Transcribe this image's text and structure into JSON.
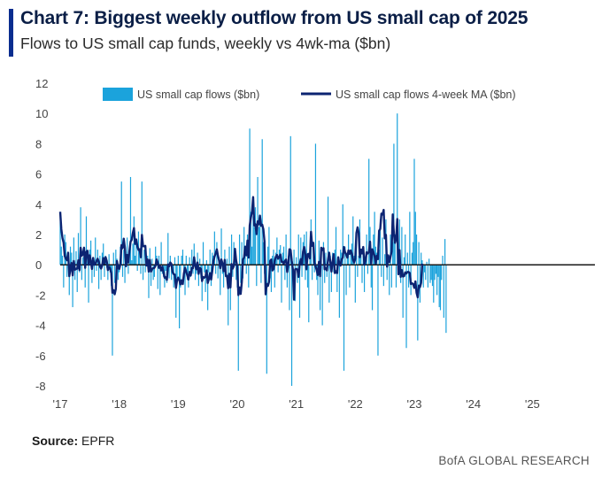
{
  "title": "Chart 7: Biggest weekly outflow from US small cap of 2025",
  "subtitle": "Flows to US small cap funds, weekly vs 4wk-ma ($bn)",
  "source_label": "Source:",
  "source_value": "EPFR",
  "footer": "BofA GLOBAL RESEARCH",
  "colors": {
    "bars": "#1ba3dc",
    "ma_line": "#0c2472",
    "zero_line": "#1a1a1a",
    "accent": "#0a2d8f"
  },
  "chart_data": {
    "type": "bar",
    "title": "Chart 7: Biggest weekly outflow from US small cap of 2025",
    "subtitle": "Flows to US small cap funds, weekly vs 4wk-ma ($bn)",
    "xlabel": "",
    "ylabel": "",
    "ylim": [
      -8,
      12
    ],
    "y_ticks": [
      12,
      10,
      8,
      6,
      4,
      2,
      0,
      -2,
      -4,
      -6,
      -8
    ],
    "x_tick_labels": [
      "'17",
      "'18",
      "'19",
      "'20",
      "'21",
      "'22",
      "'23",
      "'24",
      "'25"
    ],
    "x_range": [
      2017.0,
      2025.85
    ],
    "legend": [
      "US small cap flows ($bn)",
      "US small cap flows 4-week MA ($bn)"
    ],
    "legend_position": "top",
    "grid": false,
    "series": [
      {
        "name": "US small cap flows ($bn)",
        "kind": "bar",
        "period": "weekly",
        "start": 2017.0,
        "step": 0.01923,
        "values": [
          3.5,
          1.2,
          0.6,
          -1.5,
          2.0,
          1.5,
          -0.8,
          0.5,
          -2.0,
          1.2,
          0.8,
          -2.8,
          1.8,
          -1.0,
          0.9,
          -1.8,
          2.1,
          -0.5,
          3.8,
          -1.0,
          0.5,
          1.2,
          -1.5,
          3.2,
          0.8,
          -2.5,
          1.0,
          1.6,
          -1.2,
          0.4,
          -0.8,
          1.8,
          -0.4,
          1.0,
          -1.6,
          0.6,
          -1.0,
          0.8,
          1.4,
          -0.8,
          0.6,
          -0.2,
          -1.0,
          0.7,
          -0.5,
          -1.4,
          -6.0,
          0.8,
          -1.2,
          1.0,
          0.4,
          -1.0,
          -0.5,
          1.2,
          5.5,
          -0.8,
          1.0,
          -1.2,
          0.6,
          1.8,
          -0.6,
          0.9,
          5.8,
          0.3,
          1.4,
          3.2,
          0.6,
          1.5,
          -0.4,
          2.2,
          0.8,
          -0.6,
          5.5,
          -1.0,
          1.0,
          -0.5,
          0.3,
          0.6,
          -2.2,
          1.1,
          -1.4,
          0.4,
          -1.0,
          -0.8,
          1.2,
          0.6,
          -1.6,
          0.6,
          -2.0,
          1.5,
          -0.6,
          -0.8,
          -1.5,
          -0.4,
          -1.2,
          2.1,
          -0.9,
          0.6,
          -1.0,
          -0.6,
          -1.5,
          0.5,
          -3.5,
          -1.0,
          0.6,
          -4.2,
          -1.5,
          0.6,
          1.0,
          -0.4,
          -2.0,
          0.6,
          -1.0,
          -1.5,
          0.5,
          -0.8,
          1.0,
          -0.6,
          1.4,
          -1.0,
          -0.6,
          0.8,
          -1.4,
          0.4,
          -0.9,
          -2.4,
          1.5,
          -0.5,
          -1.8,
          0.3,
          -3.0,
          -0.5,
          1.0,
          -1.4,
          0.8,
          0.6,
          2.2,
          -0.6,
          1.5,
          -0.9,
          0.5,
          -2.0,
          2.4,
          -0.6,
          -1.5,
          1.0,
          -0.8,
          0.4,
          -4.0,
          1.2,
          -3.0,
          2.0,
          -0.8,
          1.5,
          0.5,
          -1.0,
          -1.5,
          -7.0,
          2.0,
          -1.2,
          1.5,
          -0.9,
          2.5,
          1.0,
          -0.6,
          2.0,
          -1.5,
          9.0,
          3.5,
          1.2,
          3.2,
          2.5,
          3.8,
          -1.4,
          5.8,
          2.5,
          3.0,
          -1.2,
          8.3,
          1.5,
          -0.6,
          -1.5,
          -7.2,
          1.2,
          2.5,
          -0.9,
          -1.8,
          0.6,
          1.0,
          -1.5,
          0.8,
          1.8,
          -0.5,
          1.0,
          1.3,
          -2.5,
          0.8,
          1.2,
          -1.0,
          2.0,
          -1.5,
          0.6,
          -3.0,
          8.5,
          -8.0,
          -0.8,
          1.0,
          -2.4,
          0.5,
          -1.2,
          2.0,
          -3.5,
          1.8,
          -0.8,
          1.5,
          2.0,
          -1.0,
          2.2,
          -1.5,
          -3.8,
          0.8,
          3.0,
          -1.0,
          1.2,
          -0.5,
          8.0,
          -1.0,
          -2.0,
          1.6,
          -3.0,
          0.6,
          -4.0,
          1.5,
          -1.2,
          0.8,
          -0.8,
          4.5,
          -2.5,
          0.6,
          -1.8,
          0.8,
          -0.5,
          1.0,
          2.5,
          -1.8,
          0.5,
          -3.5,
          1.0,
          0.8,
          4.0,
          -7.0,
          1.2,
          -2.0,
          0.6,
          2.0,
          -1.5,
          1.0,
          1.4,
          3.2,
          0.6,
          -2.5,
          1.5,
          -0.8,
          0.6,
          3.0,
          1.0,
          -1.2,
          0.9,
          -1.8,
          0.5,
          2.0,
          -0.6,
          7.0,
          2.5,
          -1.5,
          -3.0,
          2.0,
          3.5,
          1.2,
          0.8,
          -6.0,
          1.0,
          3.0,
          -0.8,
          1.8,
          -1.4,
          0.7,
          3.0,
          -1.0,
          0.4,
          -2.0,
          2.0,
          -1.5,
          1.5,
          8.0,
          2.0,
          -1.5,
          10.0,
          1.5,
          3.0,
          -1.2,
          2.5,
          -3.5,
          0.5,
          2.0,
          -5.5,
          0.8,
          -1.5,
          3.5,
          -2.0,
          0.8,
          1.5,
          7.0,
          3.5,
          2.0,
          -5.0,
          1.5,
          -2.5,
          0.8,
          0.3,
          -1.5,
          -0.5,
          -1.0,
          0.2,
          -1.5,
          0.4,
          -1.2,
          -1.0,
          -1.4,
          -2.5,
          -1.0,
          -0.6,
          -2.0,
          -0.8,
          -2.8,
          -3.0,
          -1.0,
          0.6,
          -3.5,
          1.7,
          -4.5
        ]
      },
      {
        "name": "US small cap flows 4-week MA ($bn)",
        "kind": "line",
        "period": "weekly",
        "note": "trailing 4-week average of the weekly flows above",
        "values": [
          3.5,
          2.35,
          1.767,
          1.45,
          0.575,
          0.4,
          0.3,
          0.8,
          -0.75,
          -0.275,
          0.125,
          -0.7,
          0.25,
          -0.325,
          -0.275,
          -0.25,
          0.3,
          -0.35,
          1.125,
          0.6,
          0.7,
          1.125,
          -0.2,
          0.85,
          0.925,
          -0.0,
          0.625,
          0.225,
          -0.275,
          0.45,
          0.0,
          0.05,
          0.25,
          0.4,
          0.2,
          -0.1,
          -0.25,
          -0.05,
          0.45,
          0.1,
          0.5,
          0.25,
          -0.35,
          -0.125,
          -0.25,
          -0.55,
          -1.85,
          -1.675,
          -1.95,
          -1.6,
          0.25,
          -0.2,
          -0.275,
          0.025,
          1.3,
          1.1,
          1.725,
          1.125,
          -0.1,
          0.65,
          0.15,
          0.925,
          1.525,
          1.65,
          2.1,
          2.425,
          1.375,
          1.675,
          1.225,
          0.975,
          1.025,
          0.5,
          1.975,
          1.225,
          1.225,
          1.25,
          -0.05,
          0.35,
          -0.45,
          0.325,
          -0.45,
          -0.275,
          -0.225,
          -0.2,
          -0.05,
          0.35,
          0.125,
          -0.2,
          -0.1,
          -0.375,
          -0.125,
          -0.475,
          -0.85,
          -0.825,
          -1.0,
          0.025,
          -0.1,
          0.15,
          0.05,
          -0.475,
          -0.625,
          -0.65,
          -1.525,
          -1.0,
          -0.85,
          -1.025,
          -1.3,
          -1.025,
          -1.275,
          -0.575,
          -0.2,
          -0.45,
          -0.7,
          -0.975,
          -0.475,
          -0.7,
          -0.2,
          -0.225,
          0.5,
          -0.05,
          -0.3,
          0.15,
          -0.6,
          -0.2,
          -0.275,
          -1.075,
          -0.8,
          -0.85,
          -0.8,
          -0.375,
          -1.2,
          -0.95,
          -0.55,
          -0.975,
          -0.4,
          0.25,
          0.55,
          0.75,
          1.025,
          0.6,
          0.275,
          -0.225,
          0.35,
          0.075,
          -0.425,
          0.325,
          -0.75,
          -0.725,
          -1.55,
          -0.6,
          -1.5,
          0.05,
          -0.25,
          -0.075,
          1.05,
          0.3,
          -0.125,
          -2.0,
          -1.5,
          -1.925,
          -1.175,
          0.35,
          0.475,
          1.2,
          0.625,
          1.6,
          0.475,
          2.6,
          3.125,
          3.5,
          4.475,
          2.6,
          2.675,
          2.025,
          2.875,
          2.675,
          3.25,
          2.575,
          2.65,
          2.35,
          1.55,
          -1.95,
          -1.275,
          -1.4,
          -1.125,
          0.25,
          0.35,
          -0.375,
          -0.275,
          0.275,
          0.525,
          0.65,
          0.4,
          0.5,
          0.675,
          0.2,
          0.2,
          0.075,
          0.25,
          0.35,
          -0.475,
          0.05,
          1.025,
          0.975,
          0.275,
          -0.3,
          -2.3,
          -0.3,
          -0.275,
          -0.3,
          -0.8,
          0.025,
          0.375,
          -0.0,
          0.875,
          1.175,
          0.675,
          -0.3,
          0.7,
          0.725,
          0.425,
          2.175,
          1.25,
          1.45,
          0.15,
          -0.1,
          -0.35,
          -0.675,
          0.2,
          -0.75,
          1.125,
          0.975,
          1.1,
          -0.3,
          -0.225,
          -0.375,
          0.35,
          0.8,
          0.175,
          -0.45,
          0.2,
          0.7,
          -0.55,
          -0.425,
          -0.55,
          0.5,
          0.025,
          -0.05,
          0.375,
          0.475,
          1.175,
          0.825,
          0.7,
          0.475,
          0.95,
          0.725,
          0.95,
          0.725,
          0.325,
          0.15,
          0.4,
          2.1,
          2.475,
          2.1,
          0.5,
          1.0,
          0.75,
          1.175,
          -0.0,
          0.25,
          0.825,
          0.75,
          0.85,
          1.525,
          0.075,
          1.025,
          0.825,
          0.575,
          0.1,
          0.6,
          0.375,
          2.25,
          2.375,
          3.375,
          3.325,
          3.625,
          1.75,
          1.975,
          -0.125,
          0.625,
          0.175,
          0.525,
          0.875,
          3.325,
          2.075,
          1.45,
          1.725,
          3.025,
          -0.625,
          0.975,
          -0.8,
          -0.35,
          -0.775,
          -0.75,
          -0.5,
          -0.575,
          -0.475,
          -0.475,
          -0.55,
          -1.275,
          -1.225,
          -1.275,
          -1.525,
          -1.1,
          -1.85,
          -2.15,
          -1.375,
          -1.475,
          -1.2,
          0.075
        ]
      }
    ]
  }
}
